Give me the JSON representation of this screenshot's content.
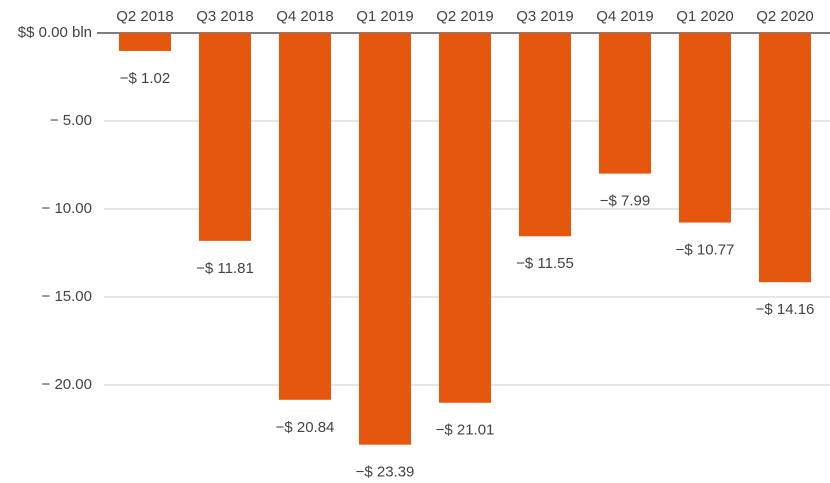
{
  "chart_data": {
    "type": "bar",
    "categories": [
      "Q2 2018",
      "Q3 2018",
      "Q4 2018",
      "Q1 2019",
      "Q2 2019",
      "Q3 2019",
      "Q4 2019",
      "Q1 2020",
      "Q2 2020"
    ],
    "values": [
      -1.02,
      -11.81,
      -20.84,
      -23.39,
      -21.01,
      -11.55,
      -7.99,
      -10.77,
      -14.16
    ],
    "value_labels": [
      "−$ 1.02",
      "−$ 11.81",
      "−$ 20.84",
      "−$ 23.39",
      "−$ 21.01",
      "−$ 11.55",
      "−$ 7.99",
      "−$ 10.77",
      "−$ 14.16"
    ],
    "color": "#e5560f",
    "ylim": [
      -25,
      0
    ],
    "yticks": [
      {
        "value": 0,
        "label": "$$ 0.00 bln"
      },
      {
        "value": -5,
        "label": "− 5.00"
      },
      {
        "value": -10,
        "label": "− 10.00"
      },
      {
        "value": -15,
        "label": "− 15.00"
      },
      {
        "value": -20,
        "label": "− 20.00"
      }
    ],
    "grid": true
  }
}
